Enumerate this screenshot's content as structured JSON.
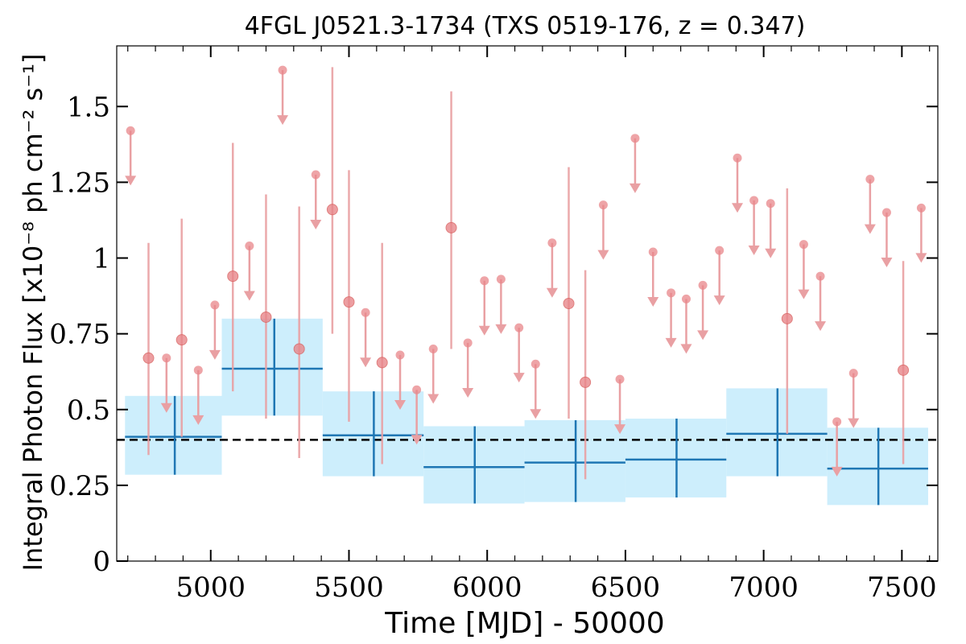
{
  "chart_data": {
    "type": "scatter",
    "title": "4FGL J0521.3-1734 (TXS 0519-176, z = 0.347)",
    "xlabel": "Time [MJD] - 50000",
    "ylabel": "Integral Photon Flux [x10⁻⁸ ph cm⁻² s⁻¹]",
    "xlim": [
      4660,
      7630
    ],
    "ylim": [
      0,
      1.7
    ],
    "x_ticks": [
      5000,
      5500,
      6000,
      6500,
      7000,
      7500
    ],
    "x_tick_labels": [
      "5000",
      "5500",
      "6000",
      "6500",
      "7000",
      "7500"
    ],
    "y_ticks": [
      0,
      0.25,
      0.5,
      0.75,
      1.0,
      1.25,
      1.5
    ],
    "y_tick_labels": [
      "0",
      "0.25",
      "0.5",
      "0.75",
      "1",
      "1.25",
      "1.5"
    ],
    "grid": false,
    "reference_line": {
      "y": 0.4,
      "style": "dashed",
      "color": "#000000"
    },
    "colors": {
      "bins": "#1f77b4",
      "band": "#cdeefc",
      "points": "#e8868a",
      "uplim": "#e9a0a3"
    },
    "series": [
      {
        "kind": "binned",
        "points": [
          {
            "x0": 4690,
            "x1": 5040,
            "xc": 4870,
            "y": 0.41,
            "ylo": 0.285,
            "yhi": 0.545
          },
          {
            "x0": 5040,
            "x1": 5405,
            "xc": 5230,
            "y": 0.635,
            "ylo": 0.48,
            "yhi": 0.8
          },
          {
            "x0": 5405,
            "x1": 5770,
            "xc": 5590,
            "y": 0.415,
            "ylo": 0.28,
            "yhi": 0.56
          },
          {
            "x0": 5770,
            "x1": 6135,
            "xc": 5955,
            "y": 0.31,
            "ylo": 0.19,
            "yhi": 0.445
          },
          {
            "x0": 6135,
            "x1": 6500,
            "xc": 6320,
            "y": 0.325,
            "ylo": 0.195,
            "yhi": 0.465
          },
          {
            "x0": 6500,
            "x1": 6865,
            "xc": 6685,
            "y": 0.335,
            "ylo": 0.21,
            "yhi": 0.47
          },
          {
            "x0": 6865,
            "x1": 7230,
            "xc": 7050,
            "y": 0.42,
            "ylo": 0.28,
            "yhi": 0.57
          },
          {
            "x0": 7230,
            "x1": 7595,
            "xc": 7415,
            "y": 0.305,
            "ylo": 0.185,
            "yhi": 0.44
          }
        ]
      },
      {
        "kind": "detections",
        "points": [
          {
            "x": 4775,
            "y": 0.67,
            "ylo": 0.35,
            "yhi": 1.05
          },
          {
            "x": 4895,
            "y": 0.73,
            "ylo": 0.41,
            "yhi": 1.13
          },
          {
            "x": 5080,
            "y": 0.94,
            "ylo": 0.56,
            "yhi": 1.38
          },
          {
            "x": 5200,
            "y": 0.805,
            "ylo": 0.47,
            "yhi": 1.21
          },
          {
            "x": 5320,
            "y": 0.7,
            "ylo": 0.34,
            "yhi": 1.17
          },
          {
            "x": 5440,
            "y": 1.16,
            "ylo": 0.75,
            "yhi": 1.63
          },
          {
            "x": 5500,
            "y": 0.855,
            "ylo": 0.46,
            "yhi": 1.29
          },
          {
            "x": 5620,
            "y": 0.655,
            "ylo": 0.32,
            "yhi": 1.05
          },
          {
            "x": 5870,
            "y": 1.1,
            "ylo": 0.7,
            "yhi": 1.55
          },
          {
            "x": 6295,
            "y": 0.85,
            "ylo": 0.47,
            "yhi": 1.3
          },
          {
            "x": 6355,
            "y": 0.59,
            "ylo": 0.27,
            "yhi": 0.96
          },
          {
            "x": 7085,
            "y": 0.8,
            "ylo": 0.42,
            "yhi": 1.23
          },
          {
            "x": 7505,
            "y": 0.63,
            "ylo": 0.32,
            "yhi": 0.99
          }
        ]
      },
      {
        "kind": "upper_limits",
        "points": [
          {
            "x": 4710,
            "y": 1.42
          },
          {
            "x": 4840,
            "y": 0.67
          },
          {
            "x": 4955,
            "y": 0.63
          },
          {
            "x": 5015,
            "y": 0.845
          },
          {
            "x": 5140,
            "y": 1.04
          },
          {
            "x": 5260,
            "y": 1.62
          },
          {
            "x": 5380,
            "y": 1.275
          },
          {
            "x": 5560,
            "y": 0.82
          },
          {
            "x": 5685,
            "y": 0.68
          },
          {
            "x": 5745,
            "y": 0.565
          },
          {
            "x": 5805,
            "y": 0.7
          },
          {
            "x": 5930,
            "y": 0.72
          },
          {
            "x": 5990,
            "y": 0.925
          },
          {
            "x": 6050,
            "y": 0.93
          },
          {
            "x": 6115,
            "y": 0.77
          },
          {
            "x": 6175,
            "y": 0.65
          },
          {
            "x": 6235,
            "y": 1.05
          },
          {
            "x": 6420,
            "y": 1.175
          },
          {
            "x": 6480,
            "y": 0.6
          },
          {
            "x": 6535,
            "y": 1.395
          },
          {
            "x": 6600,
            "y": 1.02
          },
          {
            "x": 6665,
            "y": 0.885
          },
          {
            "x": 6720,
            "y": 0.865
          },
          {
            "x": 6780,
            "y": 0.91
          },
          {
            "x": 6840,
            "y": 1.025
          },
          {
            "x": 6905,
            "y": 1.33
          },
          {
            "x": 6965,
            "y": 1.19
          },
          {
            "x": 7025,
            "y": 1.18
          },
          {
            "x": 7145,
            "y": 1.045
          },
          {
            "x": 7205,
            "y": 0.94
          },
          {
            "x": 7265,
            "y": 0.46
          },
          {
            "x": 7325,
            "y": 0.62
          },
          {
            "x": 7385,
            "y": 1.26
          },
          {
            "x": 7445,
            "y": 1.15
          },
          {
            "x": 7570,
            "y": 1.165
          }
        ]
      }
    ]
  }
}
